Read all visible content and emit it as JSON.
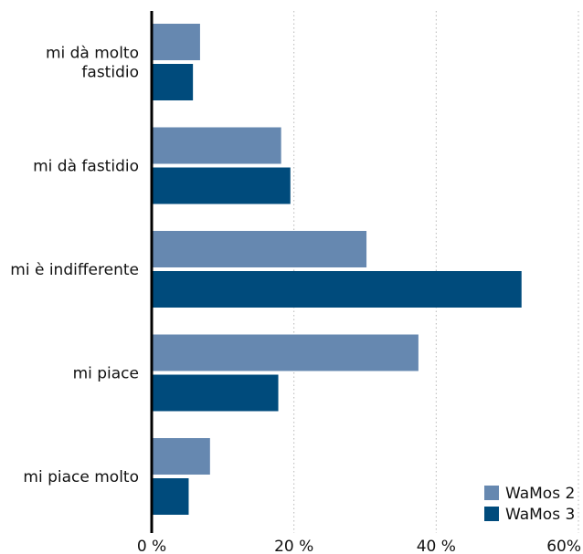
{
  "chart_data": {
    "type": "bar",
    "orientation": "horizontal",
    "categories": [
      [
        "mi dà molto",
        "fastidio"
      ],
      [
        "mi dà fastidio"
      ],
      [
        "mi è indifferente"
      ],
      [
        "mi piace"
      ],
      [
        "mi piace molto"
      ]
    ],
    "series": [
      {
        "name": "WaMos 2",
        "color": "#6688b0",
        "values": [
          6.8,
          18.2,
          30.2,
          37.5,
          8.2
        ]
      },
      {
        "name": "WaMos 3",
        "color": "#004b7c",
        "values": [
          5.8,
          19.5,
          52.0,
          17.8,
          5.2
        ]
      }
    ],
    "xlim": [
      0,
      60
    ],
    "xticks": [
      {
        "value": 0,
        "label": "0 %"
      },
      {
        "value": 20,
        "label": "20 %"
      },
      {
        "value": 40,
        "label": "40 %"
      },
      {
        "value": 60,
        "label": "60%"
      }
    ],
    "grid": true,
    "legend_position": "bottom-right",
    "title": "",
    "xlabel": "",
    "ylabel": ""
  }
}
